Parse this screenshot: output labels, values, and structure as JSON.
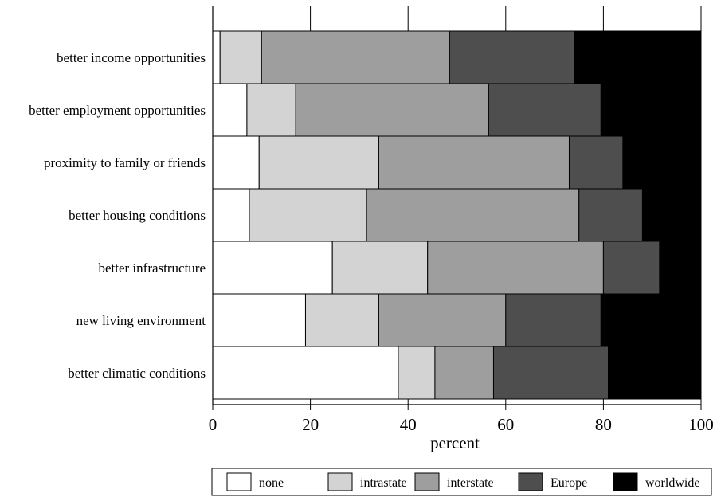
{
  "chart_data": {
    "type": "bar",
    "orientation": "horizontal",
    "stacked": true,
    "categories": [
      "better income opportunities",
      "better employment opportunities",
      "proximity to family or friends",
      "better housing conditions",
      "better infrastructure",
      "new living environment",
      "better climatic conditions"
    ],
    "series": [
      {
        "name": "none",
        "color": "#ffffff",
        "values": [
          1.5,
          7,
          9.5,
          7.5,
          24.5,
          19,
          38
        ]
      },
      {
        "name": "intrastate",
        "color": "#d3d3d3",
        "values": [
          8.5,
          10,
          24.5,
          24,
          19.5,
          15,
          7.5
        ]
      },
      {
        "name": "interstate",
        "color": "#9e9e9e",
        "values": [
          38.5,
          39.5,
          39,
          43.5,
          36,
          26,
          12
        ]
      },
      {
        "name": "Europe",
        "color": "#4e4e4e",
        "values": [
          25.5,
          23,
          11,
          13,
          11.5,
          19.5,
          23.5
        ]
      },
      {
        "name": "worldwide",
        "color": "#000000",
        "values": [
          26,
          20.5,
          16,
          12,
          8.5,
          20.5,
          19
        ]
      }
    ],
    "xlabel": "percent",
    "ylabel": "",
    "xlim": [
      0,
      100
    ],
    "xticks": [
      "0",
      "20",
      "40",
      "60",
      "80",
      "100"
    ],
    "grid": "vertical",
    "legend_position": "bottom"
  }
}
